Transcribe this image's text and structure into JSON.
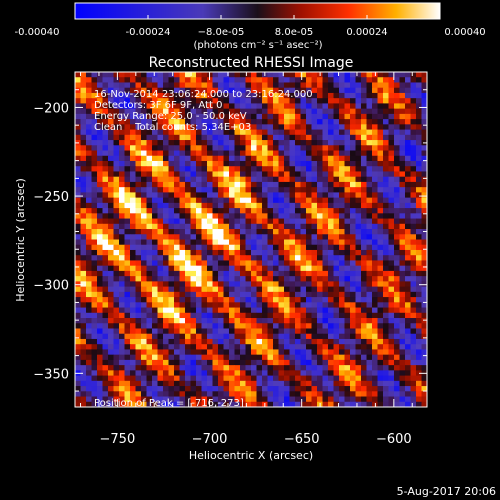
{
  "chart_data": {
    "type": "heatmap",
    "title": "Reconstructed RHESSI Image",
    "xlabel": "Heliocentric X (arcsec)",
    "ylabel": "Heliocentric Y (arcsec)",
    "xlim": [
      -773,
      -582
    ],
    "ylim": [
      -369,
      -180
    ],
    "x_ticks": [
      -750,
      -700,
      -650,
      -600
    ],
    "y_ticks": [
      -350,
      -300,
      -250,
      -200
    ],
    "colorbar": {
      "range": [
        -0.0004,
        0.0004
      ],
      "tick_values": [
        -0.0004,
        -0.00024,
        -8e-05,
        8e-05,
        0.00024,
        0.0004
      ],
      "tick_labels": [
        "-0.00040",
        "-0.00024",
        "−8.0e-05",
        "8.0e-05",
        "0.00024",
        "0.00040"
      ],
      "unit_label": "(photons cm⁻² s⁻¹ asec⁻²)"
    },
    "annotations": [
      "16-Nov-2014 23:06:24.000 to 23:16:24.000",
      "Detectors: 3F 6F 9F, Att 0",
      "Energy Range: 25.0 - 50.0 keV",
      "Clean    Total counts: 5.34E+03"
    ],
    "peak": {
      "label": "Position of Peak = [-716,-273]",
      "x": -716,
      "y": -273
    },
    "footer_date": "5-Aug-2017 20:06"
  }
}
